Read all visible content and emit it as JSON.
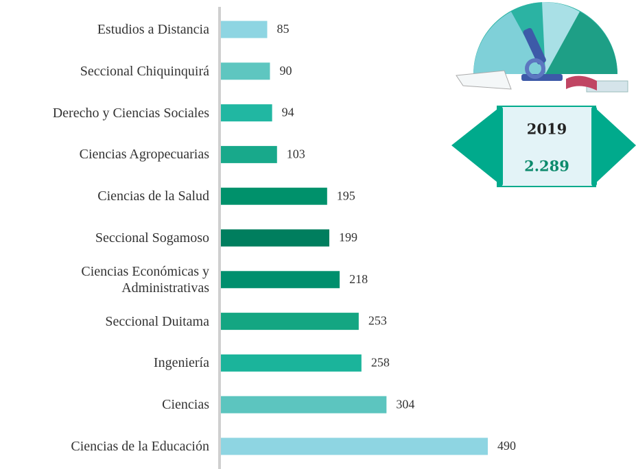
{
  "chart_data": {
    "type": "bar",
    "orientation": "horizontal",
    "categories": [
      "Estudios a Distancia",
      "Seccional Chiquinquirá",
      "Derecho y Ciencias Sociales",
      "Ciencias Agropecuarias",
      "Ciencias de la Salud",
      "Seccional Sogamoso",
      "Ciencias Económicas y Administrativas",
      "Seccional Duitama",
      "Ingeniería",
      "Ciencias",
      "Ciencias de la Educación"
    ],
    "values": [
      85,
      90,
      94,
      103,
      195,
      199,
      218,
      253,
      258,
      304,
      490
    ],
    "colors": [
      "#8ed5e2",
      "#5ec6c0",
      "#21b7a2",
      "#18a98b",
      "#00916b",
      "#007e5e",
      "#008f6d",
      "#14a682",
      "#1bb49b",
      "#5cc5bf",
      "#8ed5e2"
    ],
    "annotations": [
      "2019",
      "2.289"
    ]
  }
}
